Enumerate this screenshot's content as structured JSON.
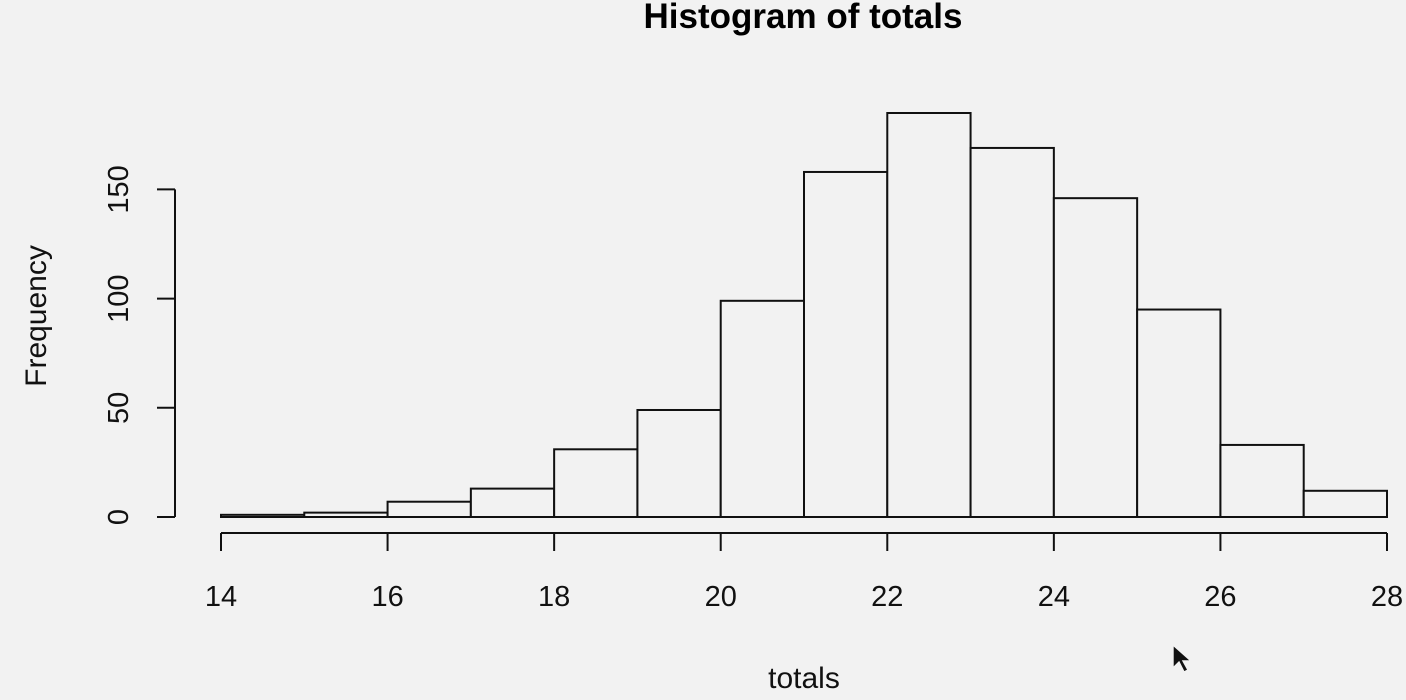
{
  "chart_data": {
    "type": "bar",
    "title": "Histogram of totals",
    "xlabel": "totals",
    "ylabel": "Frequency",
    "bins": [
      [
        14,
        15
      ],
      [
        15,
        16
      ],
      [
        16,
        17
      ],
      [
        17,
        18
      ],
      [
        18,
        19
      ],
      [
        19,
        20
      ],
      [
        20,
        21
      ],
      [
        21,
        22
      ],
      [
        22,
        23
      ],
      [
        23,
        24
      ],
      [
        24,
        25
      ],
      [
        25,
        26
      ],
      [
        26,
        27
      ],
      [
        27,
        28
      ]
    ],
    "values": [
      1,
      2,
      7,
      13,
      31,
      49,
      99,
      158,
      185,
      169,
      146,
      95,
      33,
      12
    ],
    "xlim": [
      14,
      28
    ],
    "ylim": [
      0,
      185
    ],
    "x_ticks": [
      14,
      16,
      18,
      20,
      22,
      24,
      26,
      28
    ],
    "y_ticks": [
      0,
      50,
      100,
      150
    ],
    "grid": false,
    "colors": {
      "bar_fill": "#f2f2f2",
      "bar_stroke": "#111111",
      "background": "#f2f2f2"
    }
  }
}
